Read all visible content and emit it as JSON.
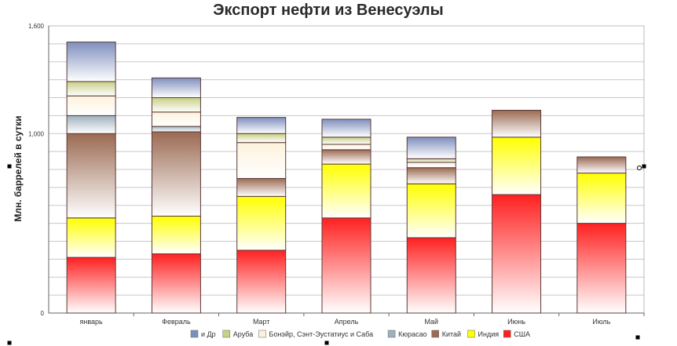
{
  "chart_data": {
    "type": "bar",
    "stacked": true,
    "title": "Экспорт нефти из Венесуэлы",
    "ylabel": "Млн. баррелей в сутки",
    "xlabel": "",
    "ylim": [
      0,
      1600
    ],
    "yticks": [
      "0",
      "1,000",
      "1,600"
    ],
    "ytick_values": [
      0,
      1000,
      1600
    ],
    "grid": true,
    "legend_position": "bottom",
    "categories": [
      "январь",
      "Февраль",
      "Март",
      "Апрель",
      "Май",
      "Июнь",
      "Июль"
    ],
    "series": [
      {
        "name": "США",
        "color": "#ff2020",
        "values": [
          310,
          330,
          350,
          530,
          420,
          660,
          500
        ]
      },
      {
        "name": "Индия",
        "color": "#ffff00",
        "values": [
          220,
          210,
          300,
          300,
          300,
          320,
          280
        ]
      },
      {
        "name": "Китай",
        "color": "#9b6a52",
        "values": [
          470,
          470,
          100,
          80,
          90,
          150,
          90
        ]
      },
      {
        "name": "Кюрасао",
        "color": "#9fb0bd",
        "values": [
          100,
          30,
          0,
          0,
          0,
          0,
          0
        ]
      },
      {
        "name": "Бонэйр, Сэнт-Эустатиус и Саба",
        "color": "#fdf2dc",
        "values": [
          110,
          80,
          200,
          30,
          30,
          0,
          0
        ]
      },
      {
        "name": "Аруба",
        "color": "#c9cf86",
        "values": [
          80,
          80,
          50,
          40,
          20,
          0,
          0
        ]
      },
      {
        "name": "и Др",
        "color": "#7f8fbd",
        "values": [
          220,
          110,
          90,
          100,
          120,
          0,
          0
        ]
      }
    ],
    "legend_order": [
      "и Др",
      "Аруба",
      "Бонэйр, Сэнт-Эустатиус и Саба",
      "Кюрасао",
      "Китай",
      "Индия",
      "США"
    ]
  }
}
